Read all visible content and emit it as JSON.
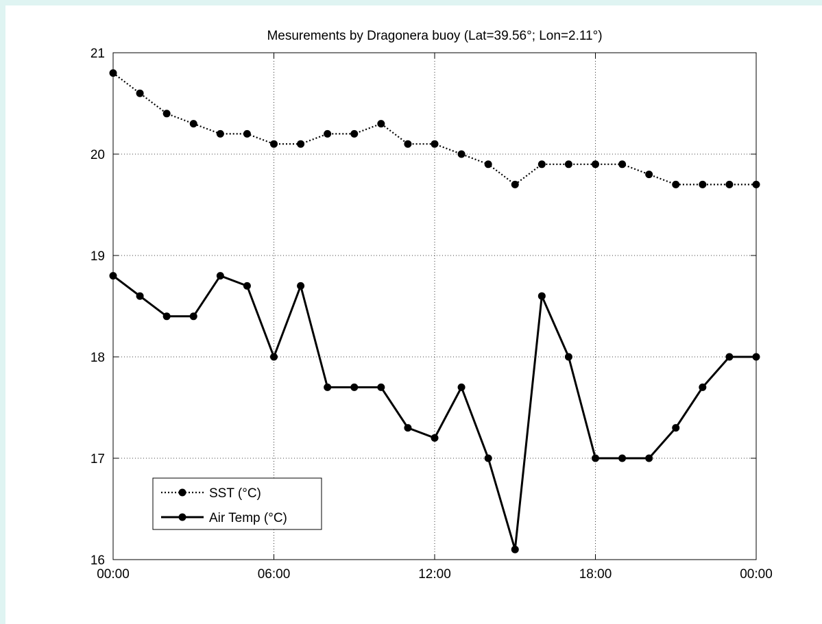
{
  "chart_data": {
    "type": "line",
    "title": "Mesurements by Dragonera buoy (Lat=39.56°; Lon=2.11°)",
    "xlabel": "",
    "ylabel": "",
    "x": [
      "00:00",
      "01:00",
      "02:00",
      "03:00",
      "04:00",
      "05:00",
      "06:00",
      "07:00",
      "08:00",
      "09:00",
      "10:00",
      "11:00",
      "12:00",
      "13:00",
      "14:00",
      "15:00",
      "16:00",
      "17:00",
      "18:00",
      "19:00",
      "20:00",
      "21:00",
      "22:00",
      "23:00",
      "00:00"
    ],
    "xticks": [
      "00:00",
      "06:00",
      "12:00",
      "18:00",
      "00:00"
    ],
    "ylim": [
      16,
      21
    ],
    "yticks": [
      "16",
      "17",
      "18",
      "19",
      "20",
      "21"
    ],
    "grid": true,
    "legend_position": "bottom-left",
    "series": [
      {
        "name": "SST (°C)",
        "style": "dotted",
        "color": "#000000",
        "values": [
          20.8,
          20.6,
          20.4,
          20.3,
          20.2,
          20.2,
          20.1,
          20.1,
          20.2,
          20.2,
          20.3,
          20.1,
          20.1,
          20.0,
          19.9,
          19.7,
          19.9,
          19.9,
          19.9,
          19.9,
          19.8,
          19.7,
          19.7,
          19.7,
          19.7
        ]
      },
      {
        "name": "Air Temp (°C)",
        "style": "solid",
        "color": "#000000",
        "values": [
          18.8,
          18.6,
          18.4,
          18.4,
          18.8,
          18.7,
          18.0,
          18.7,
          17.7,
          17.7,
          17.7,
          17.3,
          17.2,
          17.7,
          17.0,
          16.1,
          18.6,
          18.0,
          17.0,
          17.0,
          17.0,
          17.3,
          17.7,
          18.0,
          18.0
        ]
      }
    ]
  }
}
